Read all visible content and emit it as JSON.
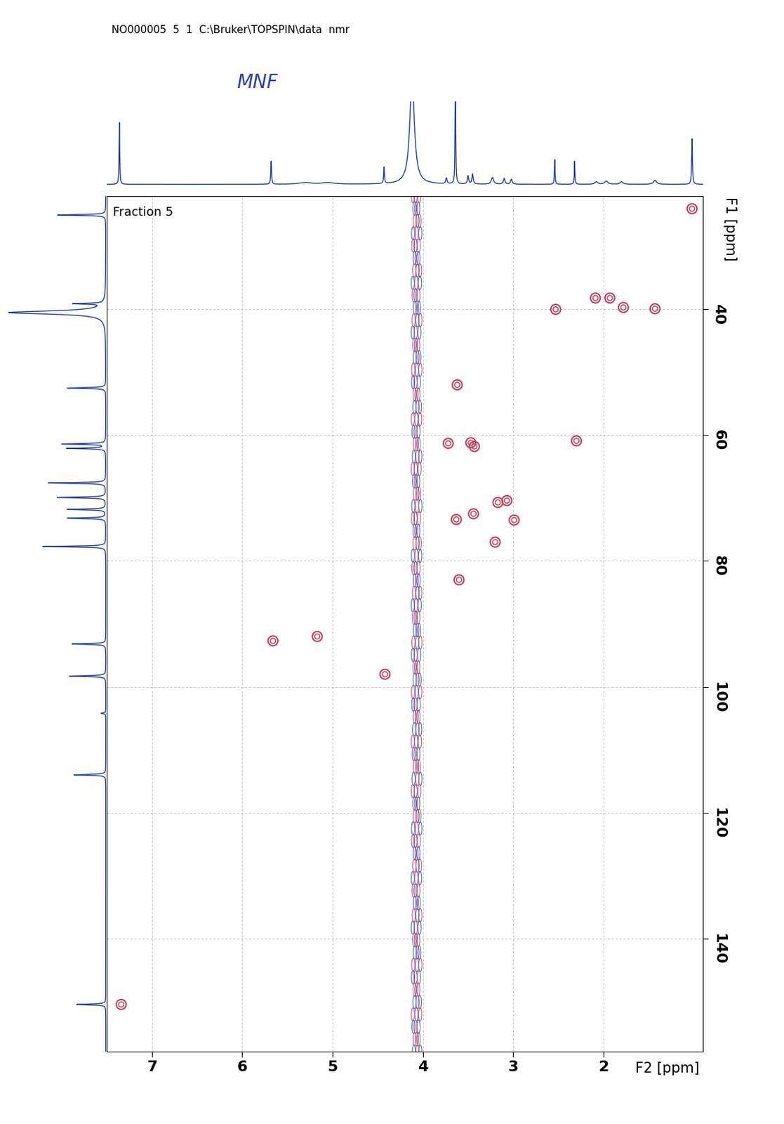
{
  "chart_data": {
    "type": "hsqc",
    "header": "NO000005  5  1  C:\\Bruker\\TOPSPIN\\data  nmr",
    "annotation": "MNF",
    "subtitle": "Fraction 5",
    "x_label": "F2 [ppm]",
    "y_label": "F1 [ppm]",
    "xlim": [
      7.5,
      0.9
    ],
    "ylim": [
      158,
      22
    ],
    "xticks": [
      7,
      6,
      5,
      4,
      3,
      2
    ],
    "yticks": [
      40,
      60,
      80,
      100,
      120,
      140
    ],
    "grid": true,
    "color": "#c8324f",
    "marker": "o",
    "x": [
      1.02,
      2.53,
      2.09,
      1.93,
      1.78,
      1.43,
      3.62,
      3.72,
      3.47,
      3.43,
      2.3,
      3.17,
      3.07,
      3.44,
      2.99,
      3.2,
      3.63,
      3.6,
      5.66,
      5.17,
      4.42,
      7.34
    ],
    "y": [
      24.0,
      40.0,
      38.2,
      38.2,
      39.7,
      39.9,
      52.0,
      61.3,
      61.2,
      61.8,
      60.9,
      70.7,
      70.4,
      72.5,
      73.5,
      77.0,
      73.4,
      83.0,
      92.7,
      92.0,
      98.0,
      150.5
    ],
    "noise_band_ppm": 4.07,
    "f2_projection": {
      "color": "#1f3a9c",
      "ppm": [
        7.36,
        5.68,
        5.3,
        5.05,
        4.43,
        4.12,
        3.74,
        3.64,
        3.5,
        3.45,
        3.23,
        3.1,
        3.02,
        2.54,
        2.32,
        2.08,
        1.97,
        1.8,
        1.43,
        1.02
      ],
      "height": [
        0.75,
        0.28,
        0.02,
        0.02,
        0.2,
        1.3,
        0.07,
        1.3,
        0.1,
        0.12,
        0.08,
        0.07,
        0.06,
        0.3,
        0.28,
        0.03,
        0.04,
        0.03,
        0.05,
        0.55
      ],
      "width": [
        0.004,
        0.005,
        0.08,
        0.08,
        0.005,
        0.03,
        0.008,
        0.004,
        0.008,
        0.008,
        0.015,
        0.01,
        0.01,
        0.004,
        0.004,
        0.02,
        0.02,
        0.02,
        0.02,
        0.005
      ]
    },
    "f1_projection": {
      "color": "#1f3a9c",
      "ppm": [
        25.0,
        39.1,
        40.5,
        52.5,
        61.4,
        62.1,
        67.6,
        69.9,
        71.8,
        73.2,
        77.7,
        93.2,
        98.3,
        104.2,
        114.0,
        150.5
      ],
      "height": [
        0.5,
        0.3,
        1.0,
        0.4,
        0.45,
        0.4,
        0.6,
        0.5,
        0.4,
        0.4,
        0.65,
        0.35,
        0.38,
        0.05,
        0.33,
        0.3
      ],
      "width": [
        0.08,
        0.08,
        0.3,
        0.08,
        0.08,
        0.08,
        0.08,
        0.08,
        0.08,
        0.08,
        0.08,
        0.08,
        0.08,
        0.08,
        0.08,
        0.08
      ]
    }
  }
}
